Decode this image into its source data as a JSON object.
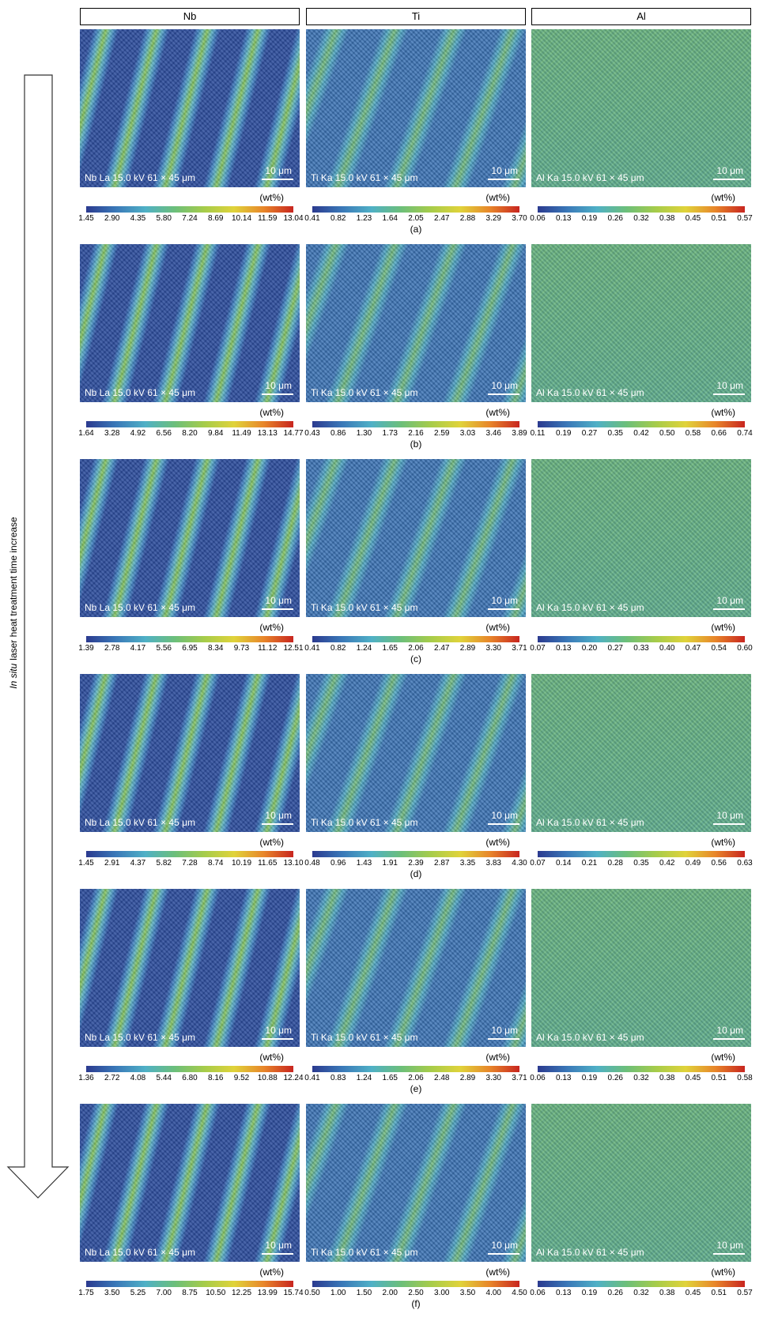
{
  "header": {
    "columns": [
      "Nb",
      "Ti",
      "Al"
    ]
  },
  "side_label": {
    "italic": "In situ",
    "text": "laser heat treatment time increase"
  },
  "rows": [
    {
      "label": "(a)",
      "maps": [
        {
          "caption": "Nb La 15.0 kV 61 × 45 μm",
          "scale": "10 μm",
          "unit": "(wt%)",
          "ticks": [
            "1.45",
            "2.90",
            "4.35",
            "5.80",
            "7.24",
            "8.69",
            "10.14",
            "11.59",
            "13.04"
          ]
        },
        {
          "caption": "Ti Ka 15.0 kV 61 × 45 μm",
          "scale": "10 μm",
          "unit": "(wt%)",
          "ticks": [
            "0.41",
            "0.82",
            "1.23",
            "1.64",
            "2.05",
            "2.47",
            "2.88",
            "3.29",
            "3.70"
          ]
        },
        {
          "caption": "Al Ka 15.0 kV 61 × 45 μm",
          "scale": "10 μm",
          "unit": "(wt%)",
          "ticks": [
            "0.06",
            "0.13",
            "0.19",
            "0.26",
            "0.32",
            "0.38",
            "0.45",
            "0.51",
            "0.57"
          ]
        }
      ]
    },
    {
      "label": "(b)",
      "maps": [
        {
          "caption": "Nb La 15.0 kV 61 × 45 μm",
          "scale": "10 μm",
          "unit": "(wt%)",
          "ticks": [
            "1.64",
            "3.28",
            "4.92",
            "6.56",
            "8.20",
            "9.84",
            "11.49",
            "13.13",
            "14.77"
          ]
        },
        {
          "caption": "Ti Ka 15.0 kV 61 × 45 μm",
          "scale": "10 μm",
          "unit": "(wt%)",
          "ticks": [
            "0.43",
            "0.86",
            "1.30",
            "1.73",
            "2.16",
            "2.59",
            "3.03",
            "3.46",
            "3.89"
          ]
        },
        {
          "caption": "Al Ka 15.0 kV 61 × 45 μm",
          "scale": "10 μm",
          "unit": "(wt%)",
          "ticks": [
            "0.11",
            "0.19",
            "0.27",
            "0.35",
            "0.42",
            "0.50",
            "0.58",
            "0.66",
            "0.74"
          ]
        }
      ]
    },
    {
      "label": "(c)",
      "maps": [
        {
          "caption": "Nb La 15.0 kV 61 × 45 μm",
          "scale": "10 μm",
          "unit": "(wt%)",
          "ticks": [
            "1.39",
            "2.78",
            "4.17",
            "5.56",
            "6.95",
            "8.34",
            "9.73",
            "11.12",
            "12.51"
          ]
        },
        {
          "caption": "Ti Ka 15.0 kV 61 × 45 μm",
          "scale": "10 μm",
          "unit": "(wt%)",
          "ticks": [
            "0.41",
            "0.82",
            "1.24",
            "1.65",
            "2.06",
            "2.47",
            "2.89",
            "3.30",
            "3.71"
          ]
        },
        {
          "caption": "Al Ka 15.0 kV 61 × 45 μm",
          "scale": "10 μm",
          "unit": "(wt%)",
          "ticks": [
            "0.07",
            "0.13",
            "0.20",
            "0.27",
            "0.33",
            "0.40",
            "0.47",
            "0.54",
            "0.60"
          ]
        }
      ]
    },
    {
      "label": "(d)",
      "maps": [
        {
          "caption": "Nb La 15.0 kV 61 × 45 μm",
          "scale": "10 μm",
          "unit": "(wt%)",
          "ticks": [
            "1.45",
            "2.91",
            "4.37",
            "5.82",
            "7.28",
            "8.74",
            "10.19",
            "11.65",
            "13.10"
          ]
        },
        {
          "caption": "Ti Ka 15.0 kV 61 × 45 μm",
          "scale": "10 μm",
          "unit": "(wt%)",
          "ticks": [
            "0.48",
            "0.96",
            "1.43",
            "1.91",
            "2.39",
            "2.87",
            "3.35",
            "3.83",
            "4.30"
          ]
        },
        {
          "caption": "Al Ka 15.0 kV 61 × 45 μm",
          "scale": "10 μm",
          "unit": "(wt%)",
          "ticks": [
            "0.07",
            "0.14",
            "0.21",
            "0.28",
            "0.35",
            "0.42",
            "0.49",
            "0.56",
            "0.63"
          ]
        }
      ]
    },
    {
      "label": "(e)",
      "maps": [
        {
          "caption": "Nb La 15.0 kV 61 × 45 μm",
          "scale": "10 μm",
          "unit": "(wt%)",
          "ticks": [
            "1.36",
            "2.72",
            "4.08",
            "5.44",
            "6.80",
            "8.16",
            "9.52",
            "10.88",
            "12.24"
          ]
        },
        {
          "caption": "Ti Ka 15.0 kV 61 × 45 μm",
          "scale": "10 μm",
          "unit": "(wt%)",
          "ticks": [
            "0.41",
            "0.83",
            "1.24",
            "1.65",
            "2.06",
            "2.48",
            "2.89",
            "3.30",
            "3.71"
          ]
        },
        {
          "caption": "Al Ka 15.0 kV 61 × 45 μm",
          "scale": "10 μm",
          "unit": "(wt%)",
          "ticks": [
            "0.06",
            "0.13",
            "0.19",
            "0.26",
            "0.32",
            "0.38",
            "0.45",
            "0.51",
            "0.58"
          ]
        }
      ]
    },
    {
      "label": "(f)",
      "maps": [
        {
          "caption": "Nb La 15.0 kV 61 × 45 μm",
          "scale": "10 μm",
          "unit": "(wt%)",
          "ticks": [
            "1.75",
            "3.50",
            "5.25",
            "7.00",
            "8.75",
            "10.50",
            "12.25",
            "13.99",
            "15.74"
          ]
        },
        {
          "caption": "Ti Ka 15.0 kV 61 × 45 μm",
          "scale": "10 μm",
          "unit": "(wt%)",
          "ticks": [
            "0.50",
            "1.00",
            "1.50",
            "2.00",
            "2.50",
            "3.00",
            "3.50",
            "4.00",
            "4.50"
          ]
        },
        {
          "caption": "Al Ka 15.0 kV 61 × 45 μm",
          "scale": "10 μm",
          "unit": "(wt%)",
          "ticks": [
            "0.06",
            "0.13",
            "0.19",
            "0.26",
            "0.32",
            "0.38",
            "0.45",
            "0.51",
            "0.57"
          ]
        }
      ]
    }
  ]
}
